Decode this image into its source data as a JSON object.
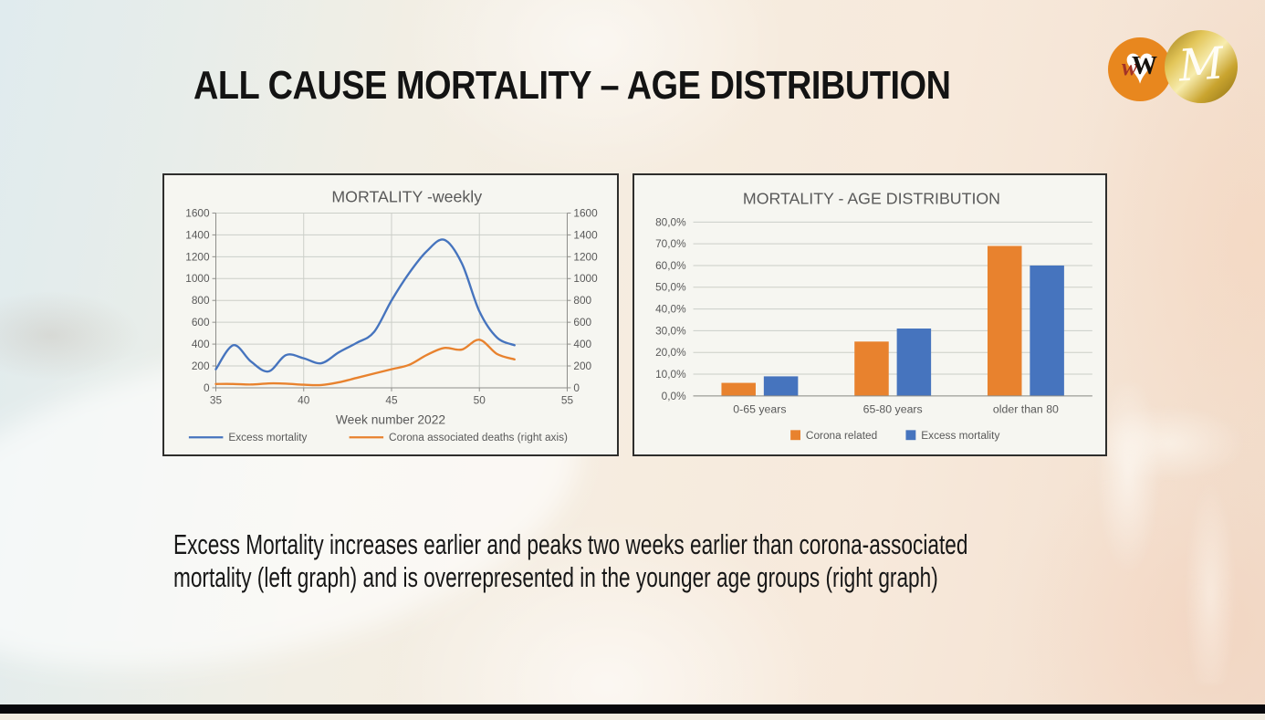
{
  "slide": {
    "title": "ALL CAUSE MORTALITY – AGE DISTRIBUTION",
    "caption_lines": [
      "Excess Mortality increases earlier and peaks two weeks earlier than corona-associated",
      "mortality (left graph) and is overrepresented in the younger age groups (right graph)"
    ]
  },
  "logo": {
    "heart_glyph": "♥",
    "letter_w_accent": "w",
    "letter_w": "W",
    "letter_m": "M",
    "heart_circle_color": "#e8871e",
    "gold_color": "#d9b63f"
  },
  "colors": {
    "excess_blue": "#4674BE",
    "corona_orange": "#E8822E",
    "chart_text_gray": "#595959",
    "gridline": "#cbcec8",
    "axis": "#8e8e8a",
    "bottom_bar": "#08080c"
  },
  "chart_data": [
    {
      "type": "line",
      "title": "MORTALITY -weekly",
      "xlabel": "Week number 2022",
      "grid": true,
      "legend_position": "bottom",
      "xlim": [
        35,
        55
      ],
      "x_ticks": [
        35,
        40,
        45,
        50,
        55
      ],
      "ylim": [
        0,
        1600
      ],
      "ylim_right": [
        0,
        1600
      ],
      "y_ticks": [
        0,
        200,
        400,
        600,
        800,
        1000,
        1200,
        1400,
        1600
      ],
      "y_tick_labels": [
        "0",
        "200",
        "400",
        "600",
        "800",
        "1000",
        "1200",
        "1400",
        "1600"
      ],
      "y_tick_labels_right": [
        "0",
        "200",
        "400",
        "600",
        "800",
        "1000",
        "1200",
        "1400",
        "1600"
      ],
      "x": [
        35,
        36,
        37,
        38,
        39,
        40,
        41,
        42,
        43,
        44,
        45,
        46,
        47,
        48,
        49,
        50,
        51,
        52
      ],
      "series": [
        {
          "name": "Excess mortality",
          "color": "#4674BE",
          "axis": "left",
          "values": [
            170,
            390,
            240,
            150,
            300,
            270,
            225,
            325,
            410,
            510,
            800,
            1050,
            1250,
            1355,
            1140,
            700,
            460,
            390
          ]
        },
        {
          "name": "Corona associated deaths (right axis)",
          "color": "#E8822E",
          "axis": "right",
          "values": [
            35,
            35,
            30,
            40,
            38,
            28,
            25,
            50,
            90,
            130,
            170,
            210,
            300,
            365,
            350,
            440,
            310,
            260
          ]
        }
      ]
    },
    {
      "type": "bar",
      "title": "MORTALITY - AGE DISTRIBUTION",
      "grid": true,
      "legend_position": "bottom",
      "categories": [
        "0-65 years",
        "65-80 years",
        "older than 80"
      ],
      "ylim": [
        0,
        80
      ],
      "y_ticks": [
        0,
        10,
        20,
        30,
        40,
        50,
        60,
        70,
        80
      ],
      "y_tick_labels": [
        "0,0%",
        "10,0%",
        "20,0%",
        "30,0%",
        "40,0%",
        "50,0%",
        "60,0%",
        "70,0%",
        "80,0%"
      ],
      "series": [
        {
          "name": "Corona related",
          "color": "#E8822E",
          "values": [
            6,
            25,
            69
          ]
        },
        {
          "name": "Excess mortality",
          "color": "#4674BE",
          "values": [
            9,
            31,
            60
          ]
        }
      ]
    }
  ]
}
